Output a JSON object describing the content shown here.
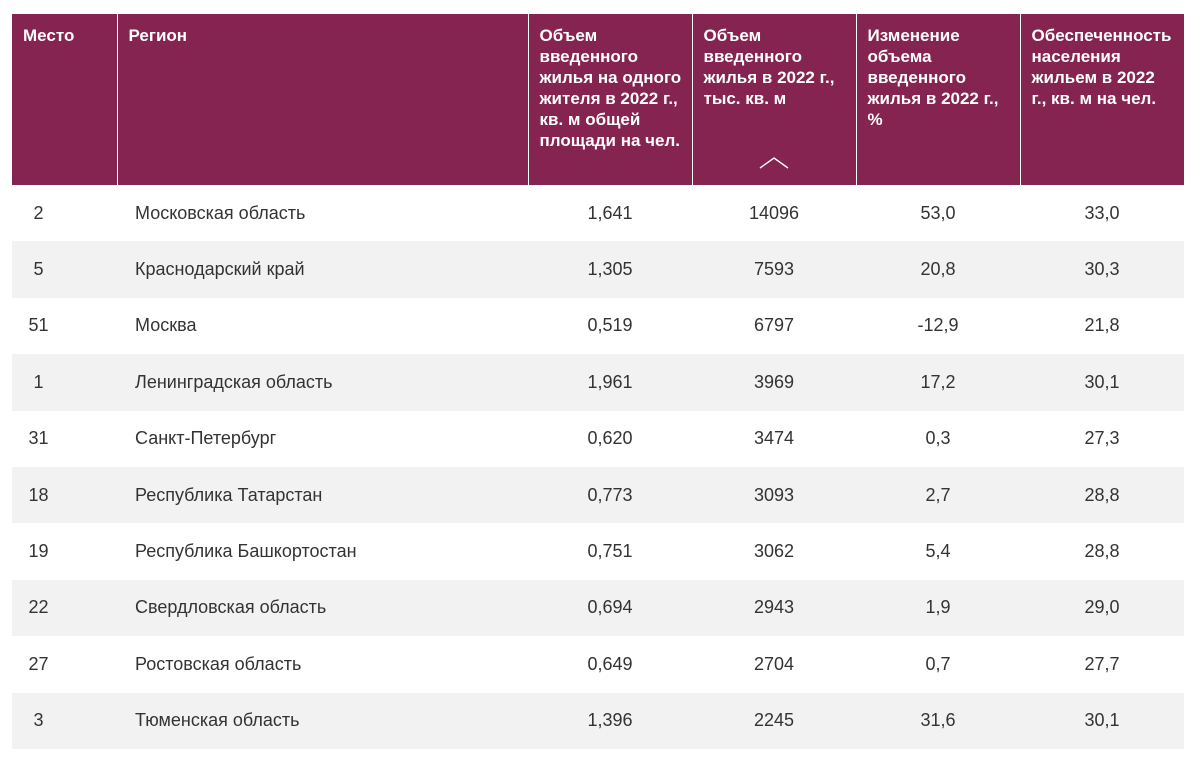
{
  "table": {
    "headers": [
      "Место",
      "Регион",
      "Объем введенного жилья на одного жителя в 2022 г., кв. м общей площади на чел.",
      "Объем введенного жилья в 2022 г., тыс. кв. м",
      "Изменение объема введенного жилья в 2022 г., %",
      "Обеспеченность населения жильем в 2022 г., кв. м на чел."
    ],
    "sorted_column": "Объем введенного жилья в 2022 г., тыс. кв. м",
    "sort_direction_icon": "chevron-up-icon",
    "rows": [
      {
        "place": "2",
        "region": "Московская область",
        "per_capita": "1,641",
        "volume": "14096",
        "change": "53,0",
        "provision": "33,0"
      },
      {
        "place": "5",
        "region": "Краснодарский край",
        "per_capita": "1,305",
        "volume": "7593",
        "change": "20,8",
        "provision": "30,3"
      },
      {
        "place": "51",
        "region": "Москва",
        "per_capita": "0,519",
        "volume": "6797",
        "change": "-12,9",
        "provision": "21,8"
      },
      {
        "place": "1",
        "region": "Ленинградская область",
        "per_capita": "1,961",
        "volume": "3969",
        "change": "17,2",
        "provision": "30,1"
      },
      {
        "place": "31",
        "region": "Санкт-Петербург",
        "per_capita": "0,620",
        "volume": "3474",
        "change": "0,3",
        "provision": "27,3"
      },
      {
        "place": "18",
        "region": "Республика Татарстан",
        "per_capita": "0,773",
        "volume": "3093",
        "change": "2,7",
        "provision": "28,8"
      },
      {
        "place": "19",
        "region": "Республика Башкортостан",
        "per_capita": "0,751",
        "volume": "3062",
        "change": "5,4",
        "provision": "28,8"
      },
      {
        "place": "22",
        "region": "Свердловская область",
        "per_capita": "0,694",
        "volume": "2943",
        "change": "1,9",
        "provision": "29,0"
      },
      {
        "place": "27",
        "region": "Ростовская область",
        "per_capita": "0,649",
        "volume": "2704",
        "change": "0,7",
        "provision": "27,7"
      },
      {
        "place": "3",
        "region": "Тюменская область",
        "per_capita": "1,396",
        "volume": "2245",
        "change": "31,6",
        "provision": "30,1"
      }
    ]
  },
  "colors": {
    "header_bg": "#852450",
    "header_text": "#ffffff",
    "row_alt_bg": "#f2f2f2",
    "cell_text": "#333333"
  }
}
